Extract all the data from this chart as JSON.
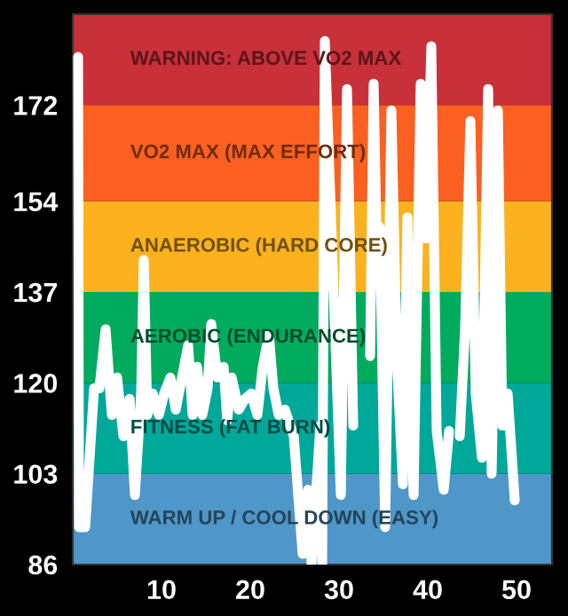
{
  "chart_data": {
    "type": "line",
    "x": [
      0.6,
      0.7,
      1.4,
      2.4,
      3.0,
      3.7,
      4.4,
      5.0,
      5.7,
      6.4,
      7.0,
      7.7,
      8.0,
      8.4,
      9.0,
      9.7,
      10.3,
      11.0,
      11.6,
      12.3,
      13.0,
      13.5,
      14.0,
      14.6,
      15.2,
      15.6,
      16.3,
      17.0,
      17.4,
      17.9,
      18.7,
      19.4,
      20.1,
      20.8,
      21.4,
      22.1,
      22.6,
      23.2,
      23.9,
      24.9,
      25.9,
      26.5,
      26.9,
      27.9,
      28.1,
      28.4,
      30.2,
      30.9,
      31.6,
      32.2,
      33.2,
      33.5,
      33.9,
      34.2,
      34.6,
      35.2,
      35.9,
      36.5,
      37.2,
      37.7,
      38.4,
      39.2,
      39.8,
      40.4,
      41.0,
      41.8,
      42.4,
      43.0,
      43.6,
      44.2,
      44.8,
      45.4,
      46.1,
      46.8,
      47.2,
      47.9,
      48.4,
      49.0,
      49.8
    ],
    "series": [
      {
        "color": "#ffffff",
        "values": [
          181,
          93,
          93,
          119,
          119,
          130,
          114,
          121,
          110,
          117,
          99,
          118,
          143,
          114,
          118,
          114,
          118,
          121,
          115,
          121,
          127,
          114,
          123,
          114,
          119,
          131,
          121,
          123,
          113,
          121,
          115,
          117,
          118,
          114,
          123,
          129,
          119,
          114,
          115,
          110,
          88,
          100,
          86,
          112,
          86,
          184,
          99,
          175,
          112,
          null,
          null,
          125,
          176,
          150,
          149,
          93,
          171,
          125,
          101,
          151,
          99,
          176,
          147,
          183,
          111,
          100,
          111,
          null,
          110,
          130,
          169,
          118,
          106,
          175,
          103,
          171,
          112,
          118,
          98
        ]
      }
    ],
    "xlim": [
      0,
      54
    ],
    "xticks": [
      10,
      20,
      30,
      40,
      50
    ],
    "ylim": [
      86,
      189
    ],
    "yticks": [
      86,
      103,
      120,
      137,
      154,
      172
    ],
    "grid": false,
    "legend": false,
    "marker": "none",
    "line_style": "solid",
    "bands": [
      {
        "axis": "y",
        "from": 86,
        "to": 103,
        "label": "WARM UP / COOL DOWN (EASY)",
        "color": "#4f97c8"
      },
      {
        "axis": "y",
        "from": 103,
        "to": 120,
        "label": "FITNESS (FAT BURN)",
        "color": "#00a89a"
      },
      {
        "axis": "y",
        "from": 120,
        "to": 137,
        "label": "AEROBIC (ENDURANCE)",
        "color": "#00ab5e"
      },
      {
        "axis": "y",
        "from": 137,
        "to": 154,
        "label": "ANAEROBIC (HARD CORE)",
        "color": "#fbb21e"
      },
      {
        "axis": "y",
        "from": 154,
        "to": 172,
        "label": "VO2 MAX (MAX EFFORT)",
        "color": "#fb6020"
      },
      {
        "axis": "y",
        "from": 172,
        "to": 189,
        "label": "WARNING: ABOVE VO2 MAX",
        "color": "#c8303a"
      }
    ]
  }
}
